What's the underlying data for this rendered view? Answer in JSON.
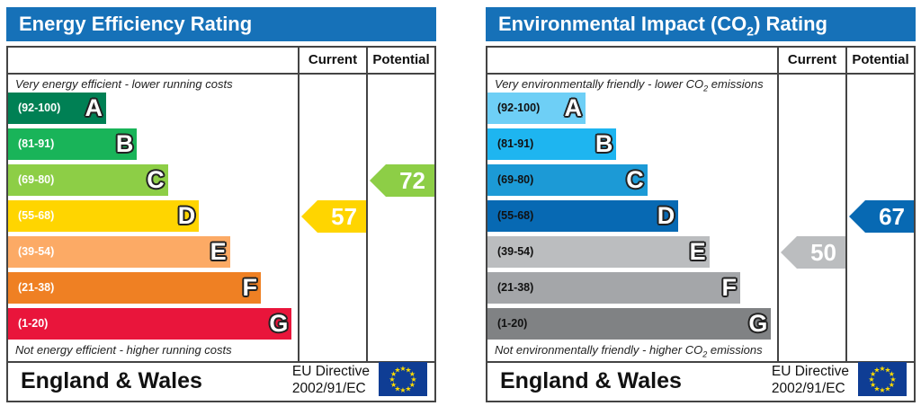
{
  "chart_data": [
    {
      "type": "bar",
      "title": "Energy Efficiency Rating",
      "columns": [
        "Current",
        "Potential"
      ],
      "top_note": "Very energy efficient - lower running costs",
      "bottom_note": "Not energy efficient - higher running costs",
      "bands": [
        {
          "range": "(92-100)",
          "letter": "A",
          "color": "#008054"
        },
        {
          "range": "(81-91)",
          "letter": "B",
          "color": "#19b459"
        },
        {
          "range": "(69-80)",
          "letter": "C",
          "color": "#8dce46"
        },
        {
          "range": "(55-68)",
          "letter": "D",
          "color": "#ffd500"
        },
        {
          "range": "(39-54)",
          "letter": "E",
          "color": "#fcaa65"
        },
        {
          "range": "(21-38)",
          "letter": "F",
          "color": "#ef8023"
        },
        {
          "range": "(1-20)",
          "letter": "G",
          "color": "#e9153b"
        }
      ],
      "current": {
        "value": 57,
        "band": "D",
        "color": "#ffd500"
      },
      "potential": {
        "value": 72,
        "band": "C",
        "color": "#8dce46"
      },
      "region": "England & Wales",
      "directive_line1": "EU Directive",
      "directive_line2": "2002/91/EC"
    },
    {
      "type": "bar",
      "title": "Environmental Impact (CO2) Rating",
      "title_main": "Environmental Impact (CO",
      "title_sub": "2",
      "title_end": ") Rating",
      "columns": [
        "Current",
        "Potential"
      ],
      "top_note": "Very environmentally friendly - lower CO2 emissions",
      "top_note_main": "Very environmentally friendly - lower CO",
      "top_note_sub": "2",
      "top_note_end": " emissions",
      "bottom_note": "Not environmentally friendly - higher CO2 emissions",
      "bottom_note_main": "Not environmentally friendly - higher CO",
      "bottom_note_sub": "2",
      "bottom_note_end": " emissions",
      "bands": [
        {
          "range": "(92-100)",
          "letter": "A",
          "color": "#6ecff6"
        },
        {
          "range": "(81-91)",
          "letter": "B",
          "color": "#1eb5f0"
        },
        {
          "range": "(69-80)",
          "letter": "C",
          "color": "#1c9ad6"
        },
        {
          "range": "(55-68)",
          "letter": "D",
          "color": "#0769b3"
        },
        {
          "range": "(39-54)",
          "letter": "E",
          "color": "#bbbdbf"
        },
        {
          "range": "(21-38)",
          "letter": "F",
          "color": "#a4a6a9"
        },
        {
          "range": "(1-20)",
          "letter": "G",
          "color": "#808284"
        }
      ],
      "current": {
        "value": 50,
        "band": "E",
        "color": "#bbbdbf"
      },
      "potential": {
        "value": 67,
        "band": "D",
        "color": "#0769b3"
      },
      "region": "England & Wales",
      "directive_line1": "EU Directive",
      "directive_line2": "2002/91/EC"
    }
  ],
  "flag_color": "#0f3d94",
  "star_color": "#ffdd00",
  "header_color": "#1671b8"
}
